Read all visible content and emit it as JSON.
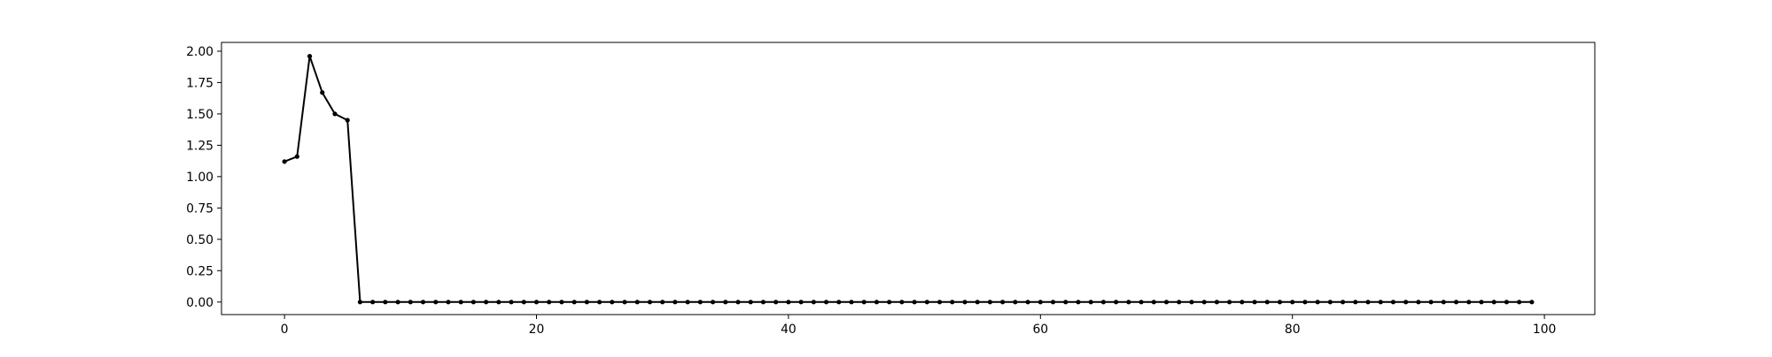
{
  "chart_data": {
    "type": "line",
    "title": "",
    "xlabel": "",
    "ylabel": "",
    "xlim": [
      -5,
      104
    ],
    "ylim": [
      -0.1,
      2.07
    ],
    "xticks": [
      0,
      20,
      40,
      60,
      80,
      100
    ],
    "yticks": [
      0.0,
      0.25,
      0.5,
      0.75,
      1.0,
      1.25,
      1.5,
      1.75,
      2.0
    ],
    "xtick_labels": [
      "0",
      "20",
      "40",
      "60",
      "80",
      "100"
    ],
    "ytick_labels": [
      "0.00",
      "0.25",
      "0.50",
      "0.75",
      "1.00",
      "1.25",
      "1.50",
      "1.75",
      "2.00"
    ],
    "grid": false,
    "legend": false,
    "series": [
      {
        "color": "#000000",
        "marker": "dot",
        "x": [
          0,
          1,
          2,
          3,
          4,
          5,
          6,
          7,
          8,
          9,
          10,
          11,
          12,
          13,
          14,
          15,
          16,
          17,
          18,
          19,
          20,
          21,
          22,
          23,
          24,
          25,
          26,
          27,
          28,
          29,
          30,
          31,
          32,
          33,
          34,
          35,
          36,
          37,
          38,
          39,
          40,
          41,
          42,
          43,
          44,
          45,
          46,
          47,
          48,
          49,
          50,
          51,
          52,
          53,
          54,
          55,
          56,
          57,
          58,
          59,
          60,
          61,
          62,
          63,
          64,
          65,
          66,
          67,
          68,
          69,
          70,
          71,
          72,
          73,
          74,
          75,
          76,
          77,
          78,
          79,
          80,
          81,
          82,
          83,
          84,
          85,
          86,
          87,
          88,
          89,
          90,
          91,
          92,
          93,
          94,
          95,
          96,
          97,
          98,
          99
        ],
        "values": [
          1.12,
          1.16,
          1.96,
          1.67,
          1.5,
          1.45,
          0,
          0,
          0,
          0,
          0,
          0,
          0,
          0,
          0,
          0,
          0,
          0,
          0,
          0,
          0,
          0,
          0,
          0,
          0,
          0,
          0,
          0,
          0,
          0,
          0,
          0,
          0,
          0,
          0,
          0,
          0,
          0,
          0,
          0,
          0,
          0,
          0,
          0,
          0,
          0,
          0,
          0,
          0,
          0,
          0,
          0,
          0,
          0,
          0,
          0,
          0,
          0,
          0,
          0,
          0,
          0,
          0,
          0,
          0,
          0,
          0,
          0,
          0,
          0,
          0,
          0,
          0,
          0,
          0,
          0,
          0,
          0,
          0,
          0,
          0,
          0,
          0,
          0,
          0,
          0,
          0,
          0,
          0,
          0,
          0,
          0,
          0,
          0,
          0,
          0,
          0,
          0,
          0,
          0
        ]
      }
    ]
  }
}
